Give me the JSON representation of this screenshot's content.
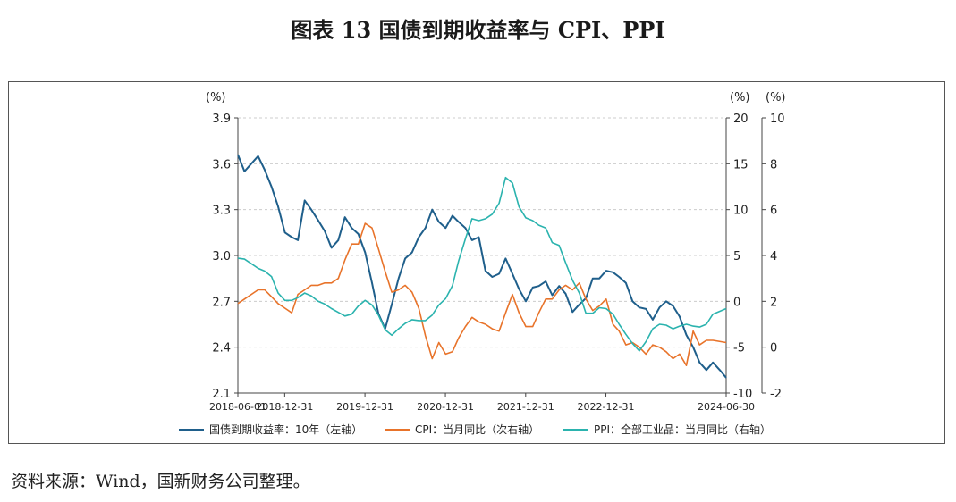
{
  "title": "图表 13  国债到期收益率与 CPI、PPI",
  "source": "资料来源：Wind，国新财务公司整理。",
  "chart_data": {
    "type": "line",
    "axes": {
      "left": {
        "unit": "(%)",
        "min": 2.1,
        "max": 3.9,
        "ticks": [
          "2.1",
          "2.4",
          "2.7",
          "3.0",
          "3.3",
          "3.6",
          "3.9"
        ]
      },
      "right1": {
        "unit": "(%)",
        "min": -10,
        "max": 20,
        "ticks": [
          "-10",
          "-5",
          "0",
          "5",
          "10",
          "15",
          "20"
        ]
      },
      "right2": {
        "unit": "(%)",
        "min": -2,
        "max": 10,
        "ticks": [
          "-2",
          "0",
          "2",
          "4",
          "6",
          "8",
          "10"
        ]
      }
    },
    "x_range": [
      "2018-06-01",
      "2024-06-30"
    ],
    "x_ticks": [
      "2018-06-01",
      "2018-12-31",
      "2019-12-31",
      "2020-12-31",
      "2021-12-31",
      "2022-12-31",
      "2024-06-30"
    ],
    "colors": {
      "bond": "#1f5f8b",
      "cpi": "#e8732a",
      "ppi": "#2bb3ae"
    },
    "series": [
      {
        "name": "国债到期收益率：10年（左轴）",
        "axis": "left",
        "points": [
          [
            "2018-06-01",
            3.66
          ],
          [
            "2018-07-01",
            3.55
          ],
          [
            "2018-08-01",
            3.6
          ],
          [
            "2018-09-01",
            3.65
          ],
          [
            "2018-10-01",
            3.56
          ],
          [
            "2018-11-01",
            3.45
          ],
          [
            "2018-12-01",
            3.32
          ],
          [
            "2019-01-01",
            3.15
          ],
          [
            "2019-02-01",
            3.12
          ],
          [
            "2019-03-01",
            3.1
          ],
          [
            "2019-04-01",
            3.36
          ],
          [
            "2019-05-01",
            3.3
          ],
          [
            "2019-06-01",
            3.23
          ],
          [
            "2019-07-01",
            3.16
          ],
          [
            "2019-08-01",
            3.05
          ],
          [
            "2019-09-01",
            3.1
          ],
          [
            "2019-10-01",
            3.25
          ],
          [
            "2019-11-01",
            3.18
          ],
          [
            "2019-12-01",
            3.14
          ],
          [
            "2020-01-01",
            3.02
          ],
          [
            "2020-02-01",
            2.82
          ],
          [
            "2020-03-01",
            2.62
          ],
          [
            "2020-04-01",
            2.52
          ],
          [
            "2020-05-01",
            2.68
          ],
          [
            "2020-06-01",
            2.85
          ],
          [
            "2020-07-01",
            2.98
          ],
          [
            "2020-08-01",
            3.02
          ],
          [
            "2020-09-01",
            3.12
          ],
          [
            "2020-10-01",
            3.18
          ],
          [
            "2020-11-01",
            3.3
          ],
          [
            "2020-12-01",
            3.22
          ],
          [
            "2021-01-01",
            3.18
          ],
          [
            "2021-02-01",
            3.26
          ],
          [
            "2021-03-01",
            3.22
          ],
          [
            "2021-04-01",
            3.18
          ],
          [
            "2021-05-01",
            3.1
          ],
          [
            "2021-06-01",
            3.12
          ],
          [
            "2021-07-01",
            2.9
          ],
          [
            "2021-08-01",
            2.86
          ],
          [
            "2021-09-01",
            2.88
          ],
          [
            "2021-10-01",
            2.98
          ],
          [
            "2021-11-01",
            2.88
          ],
          [
            "2021-12-01",
            2.78
          ],
          [
            "2022-01-01",
            2.7
          ],
          [
            "2022-02-01",
            2.79
          ],
          [
            "2022-03-01",
            2.8
          ],
          [
            "2022-04-01",
            2.83
          ],
          [
            "2022-05-01",
            2.74
          ],
          [
            "2022-06-01",
            2.8
          ],
          [
            "2022-07-01",
            2.75
          ],
          [
            "2022-08-01",
            2.63
          ],
          [
            "2022-09-01",
            2.68
          ],
          [
            "2022-10-01",
            2.72
          ],
          [
            "2022-11-01",
            2.85
          ],
          [
            "2022-12-01",
            2.85
          ],
          [
            "2023-01-01",
            2.9
          ],
          [
            "2023-02-01",
            2.89
          ],
          [
            "2023-03-01",
            2.86
          ],
          [
            "2023-04-01",
            2.82
          ],
          [
            "2023-05-01",
            2.7
          ],
          [
            "2023-06-01",
            2.66
          ],
          [
            "2023-07-01",
            2.65
          ],
          [
            "2023-08-01",
            2.58
          ],
          [
            "2023-09-01",
            2.66
          ],
          [
            "2023-10-01",
            2.7
          ],
          [
            "2023-11-01",
            2.67
          ],
          [
            "2023-12-01",
            2.6
          ],
          [
            "2024-01-01",
            2.48
          ],
          [
            "2024-02-01",
            2.4
          ],
          [
            "2024-03-01",
            2.3
          ],
          [
            "2024-04-01",
            2.25
          ],
          [
            "2024-05-01",
            2.3
          ],
          [
            "2024-06-01",
            2.25
          ],
          [
            "2024-06-30",
            2.2
          ]
        ]
      },
      {
        "name": "CPI：当月同比（次右轴）",
        "axis": "right2",
        "points": [
          [
            "2018-06-01",
            1.9
          ],
          [
            "2018-07-01",
            2.1
          ],
          [
            "2018-08-01",
            2.3
          ],
          [
            "2018-09-01",
            2.5
          ],
          [
            "2018-10-01",
            2.5
          ],
          [
            "2018-11-01",
            2.2
          ],
          [
            "2018-12-01",
            1.9
          ],
          [
            "2019-01-01",
            1.7
          ],
          [
            "2019-02-01",
            1.5
          ],
          [
            "2019-03-01",
            2.3
          ],
          [
            "2019-04-01",
            2.5
          ],
          [
            "2019-05-01",
            2.7
          ],
          [
            "2019-06-01",
            2.7
          ],
          [
            "2019-07-01",
            2.8
          ],
          [
            "2019-08-01",
            2.8
          ],
          [
            "2019-09-01",
            3.0
          ],
          [
            "2019-10-01",
            3.8
          ],
          [
            "2019-11-01",
            4.5
          ],
          [
            "2019-12-01",
            4.5
          ],
          [
            "2020-01-01",
            5.4
          ],
          [
            "2020-02-01",
            5.2
          ],
          [
            "2020-03-01",
            4.3
          ],
          [
            "2020-04-01",
            3.3
          ],
          [
            "2020-05-01",
            2.4
          ],
          [
            "2020-06-01",
            2.5
          ],
          [
            "2020-07-01",
            2.7
          ],
          [
            "2020-08-01",
            2.4
          ],
          [
            "2020-09-01",
            1.7
          ],
          [
            "2020-10-01",
            0.5
          ],
          [
            "2020-11-01",
            -0.5
          ],
          [
            "2020-12-01",
            0.2
          ],
          [
            "2021-01-01",
            -0.3
          ],
          [
            "2021-02-01",
            -0.2
          ],
          [
            "2021-03-01",
            0.4
          ],
          [
            "2021-04-01",
            0.9
          ],
          [
            "2021-05-01",
            1.3
          ],
          [
            "2021-06-01",
            1.1
          ],
          [
            "2021-07-01",
            1.0
          ],
          [
            "2021-08-01",
            0.8
          ],
          [
            "2021-09-01",
            0.7
          ],
          [
            "2021-10-01",
            1.5
          ],
          [
            "2021-11-01",
            2.3
          ],
          [
            "2021-12-01",
            1.5
          ],
          [
            "2022-01-01",
            0.9
          ],
          [
            "2022-02-01",
            0.9
          ],
          [
            "2022-03-01",
            1.5
          ],
          [
            "2022-04-01",
            2.1
          ],
          [
            "2022-05-01",
            2.1
          ],
          [
            "2022-06-01",
            2.5
          ],
          [
            "2022-07-01",
            2.7
          ],
          [
            "2022-08-01",
            2.5
          ],
          [
            "2022-09-01",
            2.8
          ],
          [
            "2022-10-01",
            2.1
          ],
          [
            "2022-11-01",
            1.6
          ],
          [
            "2022-12-01",
            1.8
          ],
          [
            "2023-01-01",
            2.1
          ],
          [
            "2023-02-01",
            1.0
          ],
          [
            "2023-03-01",
            0.7
          ],
          [
            "2023-04-01",
            0.1
          ],
          [
            "2023-05-01",
            0.2
          ],
          [
            "2023-06-01",
            0.0
          ],
          [
            "2023-07-01",
            -0.3
          ],
          [
            "2023-08-01",
            0.1
          ],
          [
            "2023-09-01",
            0.0
          ],
          [
            "2023-10-01",
            -0.2
          ],
          [
            "2023-11-01",
            -0.5
          ],
          [
            "2023-12-01",
            -0.3
          ],
          [
            "2024-01-01",
            -0.8
          ],
          [
            "2024-02-01",
            0.7
          ],
          [
            "2024-03-01",
            0.1
          ],
          [
            "2024-04-01",
            0.3
          ],
          [
            "2024-05-01",
            0.3
          ],
          [
            "2024-06-30",
            0.2
          ]
        ]
      },
      {
        "name": "PPI：全部工业品：当月同比（右轴）",
        "axis": "right1",
        "points": [
          [
            "2018-06-01",
            4.7
          ],
          [
            "2018-07-01",
            4.6
          ],
          [
            "2018-08-01",
            4.1
          ],
          [
            "2018-09-01",
            3.6
          ],
          [
            "2018-10-01",
            3.3
          ],
          [
            "2018-11-01",
            2.7
          ],
          [
            "2018-12-01",
            0.9
          ],
          [
            "2019-01-01",
            0.1
          ],
          [
            "2019-02-01",
            0.1
          ],
          [
            "2019-03-01",
            0.4
          ],
          [
            "2019-04-01",
            0.9
          ],
          [
            "2019-05-01",
            0.6
          ],
          [
            "2019-06-01",
            0.0
          ],
          [
            "2019-07-01",
            -0.3
          ],
          [
            "2019-08-01",
            -0.8
          ],
          [
            "2019-09-01",
            -1.2
          ],
          [
            "2019-10-01",
            -1.6
          ],
          [
            "2019-11-01",
            -1.4
          ],
          [
            "2019-12-01",
            -0.5
          ],
          [
            "2020-01-01",
            0.1
          ],
          [
            "2020-02-01",
            -0.4
          ],
          [
            "2020-03-01",
            -1.5
          ],
          [
            "2020-04-01",
            -3.1
          ],
          [
            "2020-05-01",
            -3.7
          ],
          [
            "2020-06-01",
            -3.0
          ],
          [
            "2020-07-01",
            -2.4
          ],
          [
            "2020-08-01",
            -2.0
          ],
          [
            "2020-09-01",
            -2.1
          ],
          [
            "2020-10-01",
            -2.1
          ],
          [
            "2020-11-01",
            -1.5
          ],
          [
            "2020-12-01",
            -0.4
          ],
          [
            "2021-01-01",
            0.3
          ],
          [
            "2021-02-01",
            1.7
          ],
          [
            "2021-03-01",
            4.4
          ],
          [
            "2021-04-01",
            6.8
          ],
          [
            "2021-05-01",
            9.0
          ],
          [
            "2021-06-01",
            8.8
          ],
          [
            "2021-07-01",
            9.0
          ],
          [
            "2021-08-01",
            9.5
          ],
          [
            "2021-09-01",
            10.7
          ],
          [
            "2021-10-01",
            13.5
          ],
          [
            "2021-11-01",
            12.9
          ],
          [
            "2021-12-01",
            10.3
          ],
          [
            "2022-01-01",
            9.1
          ],
          [
            "2022-02-01",
            8.8
          ],
          [
            "2022-03-01",
            8.3
          ],
          [
            "2022-04-01",
            8.0
          ],
          [
            "2022-05-01",
            6.4
          ],
          [
            "2022-06-01",
            6.1
          ],
          [
            "2022-07-01",
            4.2
          ],
          [
            "2022-08-01",
            2.3
          ],
          [
            "2022-09-01",
            0.9
          ],
          [
            "2022-10-01",
            -1.3
          ],
          [
            "2022-11-01",
            -1.3
          ],
          [
            "2022-12-01",
            -0.7
          ],
          [
            "2023-01-01",
            -0.8
          ],
          [
            "2023-02-01",
            -1.4
          ],
          [
            "2023-03-01",
            -2.5
          ],
          [
            "2023-04-01",
            -3.6
          ],
          [
            "2023-05-01",
            -4.6
          ],
          [
            "2023-06-01",
            -5.4
          ],
          [
            "2023-07-01",
            -4.4
          ],
          [
            "2023-08-01",
            -3.0
          ],
          [
            "2023-09-01",
            -2.5
          ],
          [
            "2023-10-01",
            -2.6
          ],
          [
            "2023-11-01",
            -3.0
          ],
          [
            "2023-12-01",
            -2.7
          ],
          [
            "2024-01-01",
            -2.5
          ],
          [
            "2024-02-01",
            -2.7
          ],
          [
            "2024-03-01",
            -2.8
          ],
          [
            "2024-04-01",
            -2.5
          ],
          [
            "2024-05-01",
            -1.4
          ],
          [
            "2024-06-30",
            -0.8
          ]
        ]
      }
    ],
    "legend_position": "bottom"
  }
}
